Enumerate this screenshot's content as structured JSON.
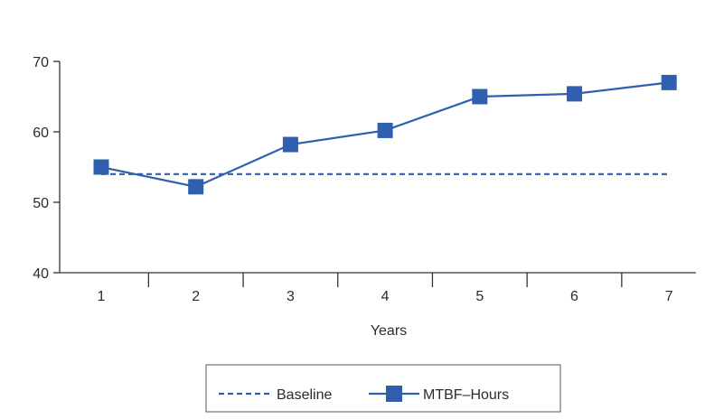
{
  "colors": {
    "series": "#2f5fad",
    "axis": "#333333",
    "text": "#2b2b2b",
    "legend_border": "#555555"
  },
  "chart_data": {
    "type": "line",
    "title": "",
    "xlabel": "Years",
    "ylabel": "",
    "x": [
      1,
      2,
      3,
      4,
      5,
      6,
      7
    ],
    "x_tick_labels": [
      "1",
      "2",
      "3",
      "4",
      "5",
      "6",
      "7"
    ],
    "ylim": [
      40,
      70
    ],
    "yticks": [
      40,
      50,
      60,
      70
    ],
    "y_tick_labels": [
      "40",
      "50",
      "60",
      "70"
    ],
    "grid": false,
    "legend_position": "bottom",
    "series": [
      {
        "name": "Baseline",
        "style": "dashed",
        "marker": "none",
        "values": [
          54,
          54,
          54,
          54,
          54,
          54,
          54
        ]
      },
      {
        "name": "MTBF–Hours",
        "style": "solid",
        "marker": "square",
        "values": [
          55,
          52.2,
          58.2,
          60.2,
          65,
          65.4,
          67
        ]
      }
    ]
  }
}
